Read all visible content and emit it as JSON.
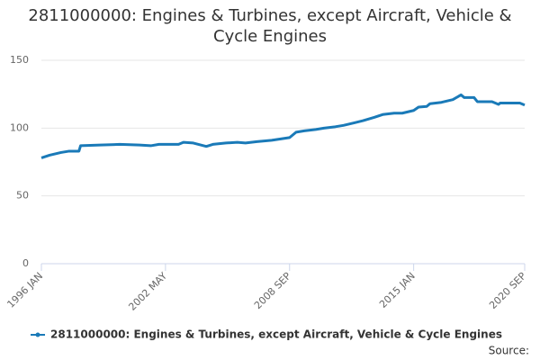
{
  "chart_data": {
    "type": "line",
    "title": "2811000000: Engines & Turbines, except Aircraft, Vehicle & Cycle Engines",
    "source": "Source:",
    "x": [
      "1996 JAN",
      "1996 JUN",
      "1997 JAN",
      "1997 JUN",
      "1997 DEC",
      "1998 JAN",
      "1999 JAN",
      "2000 JAN",
      "2001 JAN",
      "2001 AUG",
      "2002 JAN",
      "2002 MAY",
      "2003 JAN",
      "2003 APR",
      "2003 OCT",
      "2004 JUN",
      "2004 OCT",
      "2005 JUN",
      "2006 JAN",
      "2006 JUN",
      "2007 JAN",
      "2007 OCT",
      "2008 SEP",
      "2009 JAN",
      "2009 JUN",
      "2010 JAN",
      "2010 JUN",
      "2011 JAN",
      "2011 JUN",
      "2012 JAN",
      "2012 JUN",
      "2013 JAN",
      "2013 JUN",
      "2014 JAN",
      "2014 JUN",
      "2015 JAN",
      "2015 APR",
      "2015 SEP",
      "2015 NOV",
      "2016 JUN",
      "2017 JAN",
      "2017 JUN",
      "2017 AUG",
      "2018 FEB",
      "2018 APR",
      "2019 JAN",
      "2019 MAY",
      "2019 JUN",
      "2020 JAN",
      "2020 JUN",
      "2020 SEP"
    ],
    "series": [
      {
        "name": "2811000000: Engines & Turbines, except Aircraft, Vehicle & Cycle Engines",
        "color": "#1a7ab8",
        "values": [
          78,
          80,
          82,
          83,
          83,
          87,
          87.5,
          88,
          87.5,
          87,
          88,
          88,
          88,
          89.5,
          89,
          86.5,
          88,
          89,
          89.5,
          89,
          90,
          91,
          93,
          97,
          98,
          99,
          100,
          101,
          102,
          104,
          105.5,
          108,
          110,
          111,
          111,
          113,
          115.5,
          116,
          118,
          119,
          121,
          124.5,
          122.5,
          122.5,
          119.5,
          119.5,
          117.5,
          118.5,
          118.5,
          118.5,
          117
        ]
      }
    ],
    "xticks": [
      "1996 JAN",
      "2002 MAY",
      "2008 SEP",
      "2015 JAN",
      "2020 SEP"
    ],
    "ylim": [
      0,
      150
    ],
    "yticks": [
      0,
      50,
      100,
      150
    ],
    "grid": true
  }
}
